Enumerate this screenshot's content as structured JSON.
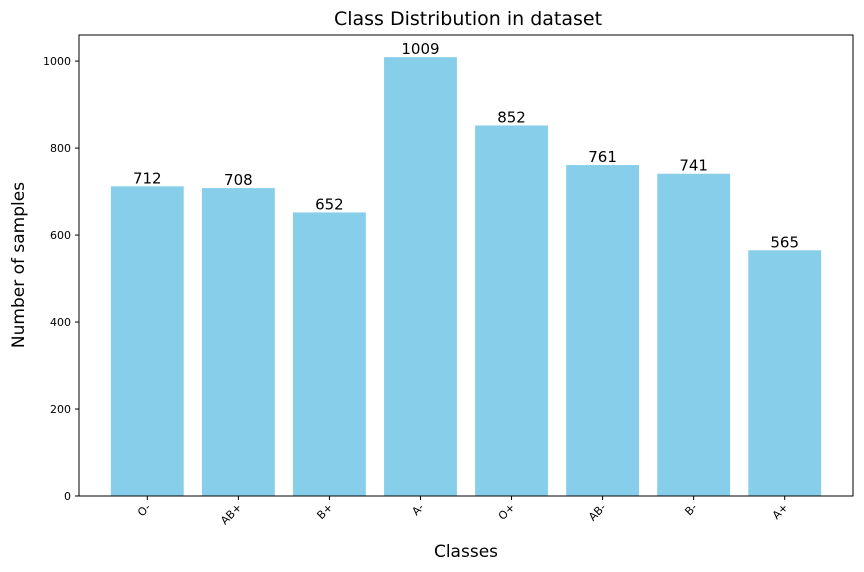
{
  "chart_data": {
    "type": "bar",
    "title": "Class Distribution in dataset",
    "xlabel": "Classes",
    "ylabel": "Number of samples",
    "categories": [
      "O-",
      "AB+",
      "B+",
      "A-",
      "O+",
      "AB-",
      "B-",
      "A+"
    ],
    "values": [
      712,
      708,
      652,
      1009,
      852,
      761,
      741,
      565
    ],
    "data_labels": [
      "712",
      "708",
      "652",
      "1009",
      "852",
      "761",
      "741",
      "565"
    ],
    "ylim": [
      0,
      1060
    ],
    "yticks": [
      0,
      200,
      400,
      600,
      800,
      1000
    ],
    "ytick_labels": [
      "0",
      "200",
      "400",
      "600",
      "800",
      "1000"
    ],
    "xtick_rotation": 45,
    "grid": false,
    "bar_color": "#87CEEB"
  }
}
